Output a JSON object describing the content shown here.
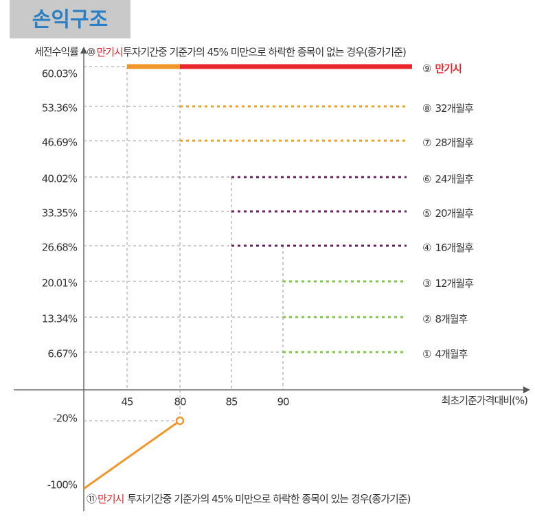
{
  "header": {
    "title": "손익구조"
  },
  "y_axis_label": "세전수익률",
  "x_axis_label": "최초기준가격대비(%)",
  "top_note": {
    "marker": "⑩",
    "highlight": "만기시",
    "text": "투자기간중 기준가의 45% 미만으로 하락한 종목이 없는 경우(종가기준)"
  },
  "bottom_note": {
    "marker": "⑪",
    "highlight": "만기시",
    "text": "투자기간중 기준가의 45% 미만으로 하락한 종목이 있는 경우(종가기준)"
  },
  "x_ticks": [
    "45",
    "80",
    "85",
    "90"
  ],
  "rows": [
    {
      "yield": "60.03%",
      "marker": "⑨",
      "label": "만기시",
      "color": "#e8262c",
      "label_color": "#e8262c"
    },
    {
      "yield": "53.36%",
      "marker": "⑧",
      "label": "32개월후",
      "color": "#f0a020"
    },
    {
      "yield": "46.69%",
      "marker": "⑦",
      "label": "28개월후",
      "color": "#f0a020"
    },
    {
      "yield": "40.02%",
      "marker": "⑥",
      "label": "24개월후",
      "color": "#6a2060"
    },
    {
      "yield": "33.35%",
      "marker": "⑤",
      "label": "20개월후",
      "color": "#6a2060"
    },
    {
      "yield": "26.68%",
      "marker": "④",
      "label": "16개월후",
      "color": "#6a2060"
    },
    {
      "yield": "20.01%",
      "marker": "③",
      "label": "12개월후",
      "color": "#7cc840"
    },
    {
      "yield": "13.34%",
      "marker": "②",
      "label": "8개월후",
      "color": "#7cc840"
    },
    {
      "yield": "6.67%",
      "marker": "①",
      "label": "4개월후",
      "color": "#7cc840"
    }
  ],
  "loss_ticks": [
    "-20%",
    "-100%"
  ],
  "loss_color": "#f0962a",
  "top_segment_color": "#f0962a"
}
